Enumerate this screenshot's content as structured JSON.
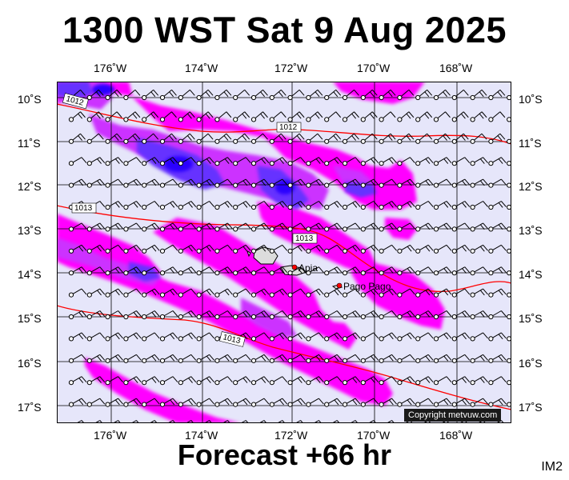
{
  "title": "1300 WST Sat 9 Aug 2025",
  "footer": "Forecast +66 hr",
  "map_id": "IM2",
  "copyright": "Copyright metvuw.com",
  "lon_labels": [
    "176˚W",
    "174˚W",
    "172˚W",
    "170˚W",
    "168˚W"
  ],
  "lat_labels": [
    "10˚S",
    "11˚S",
    "12˚S",
    "13˚S",
    "14˚S",
    "15˚S",
    "16˚S",
    "17˚S"
  ],
  "isobar_labels": [
    "1012",
    "1012",
    "1013",
    "1013",
    "1013"
  ],
  "places": [
    "Apia",
    "Pago Pago"
  ],
  "colors": {
    "background": "#e6e6fa",
    "rain_light": "#ff00ff",
    "rain_medium": "#cc33ff",
    "rain_heavy": "#6633ff",
    "rain_extreme": "#2a00ff",
    "isobar": "#ff0000",
    "land": "#dcdcdc"
  }
}
